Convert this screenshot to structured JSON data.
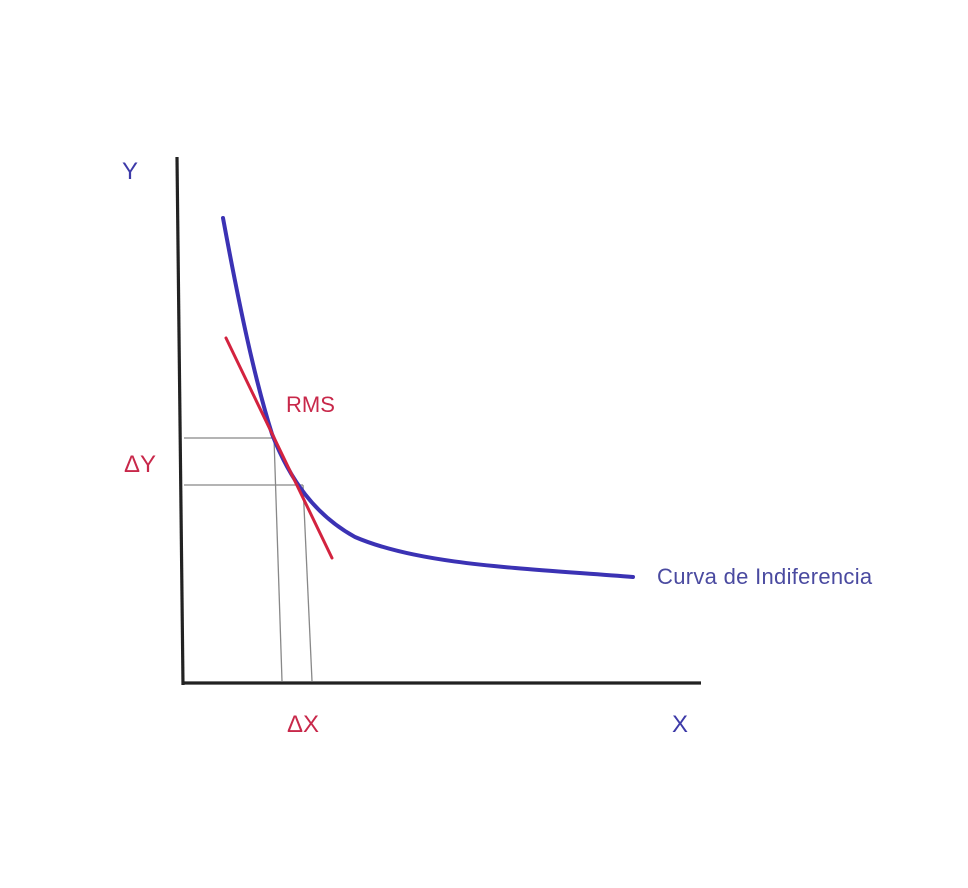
{
  "diagram": {
    "y_axis_label": "Y",
    "x_axis_label": "X",
    "tangent_label": "RMS",
    "delta_y_label": "ΔY",
    "delta_x_label": "ΔX",
    "curve_label": "Curva de Indiferencia"
  },
  "colors": {
    "axis": "#222222",
    "curve": "#3b32b4",
    "tangent": "#d3233f",
    "guide": "#888888",
    "axis_label": "#3d3aa8",
    "delta_label": "#c8284a",
    "curve_label": "#4a4aa0"
  }
}
